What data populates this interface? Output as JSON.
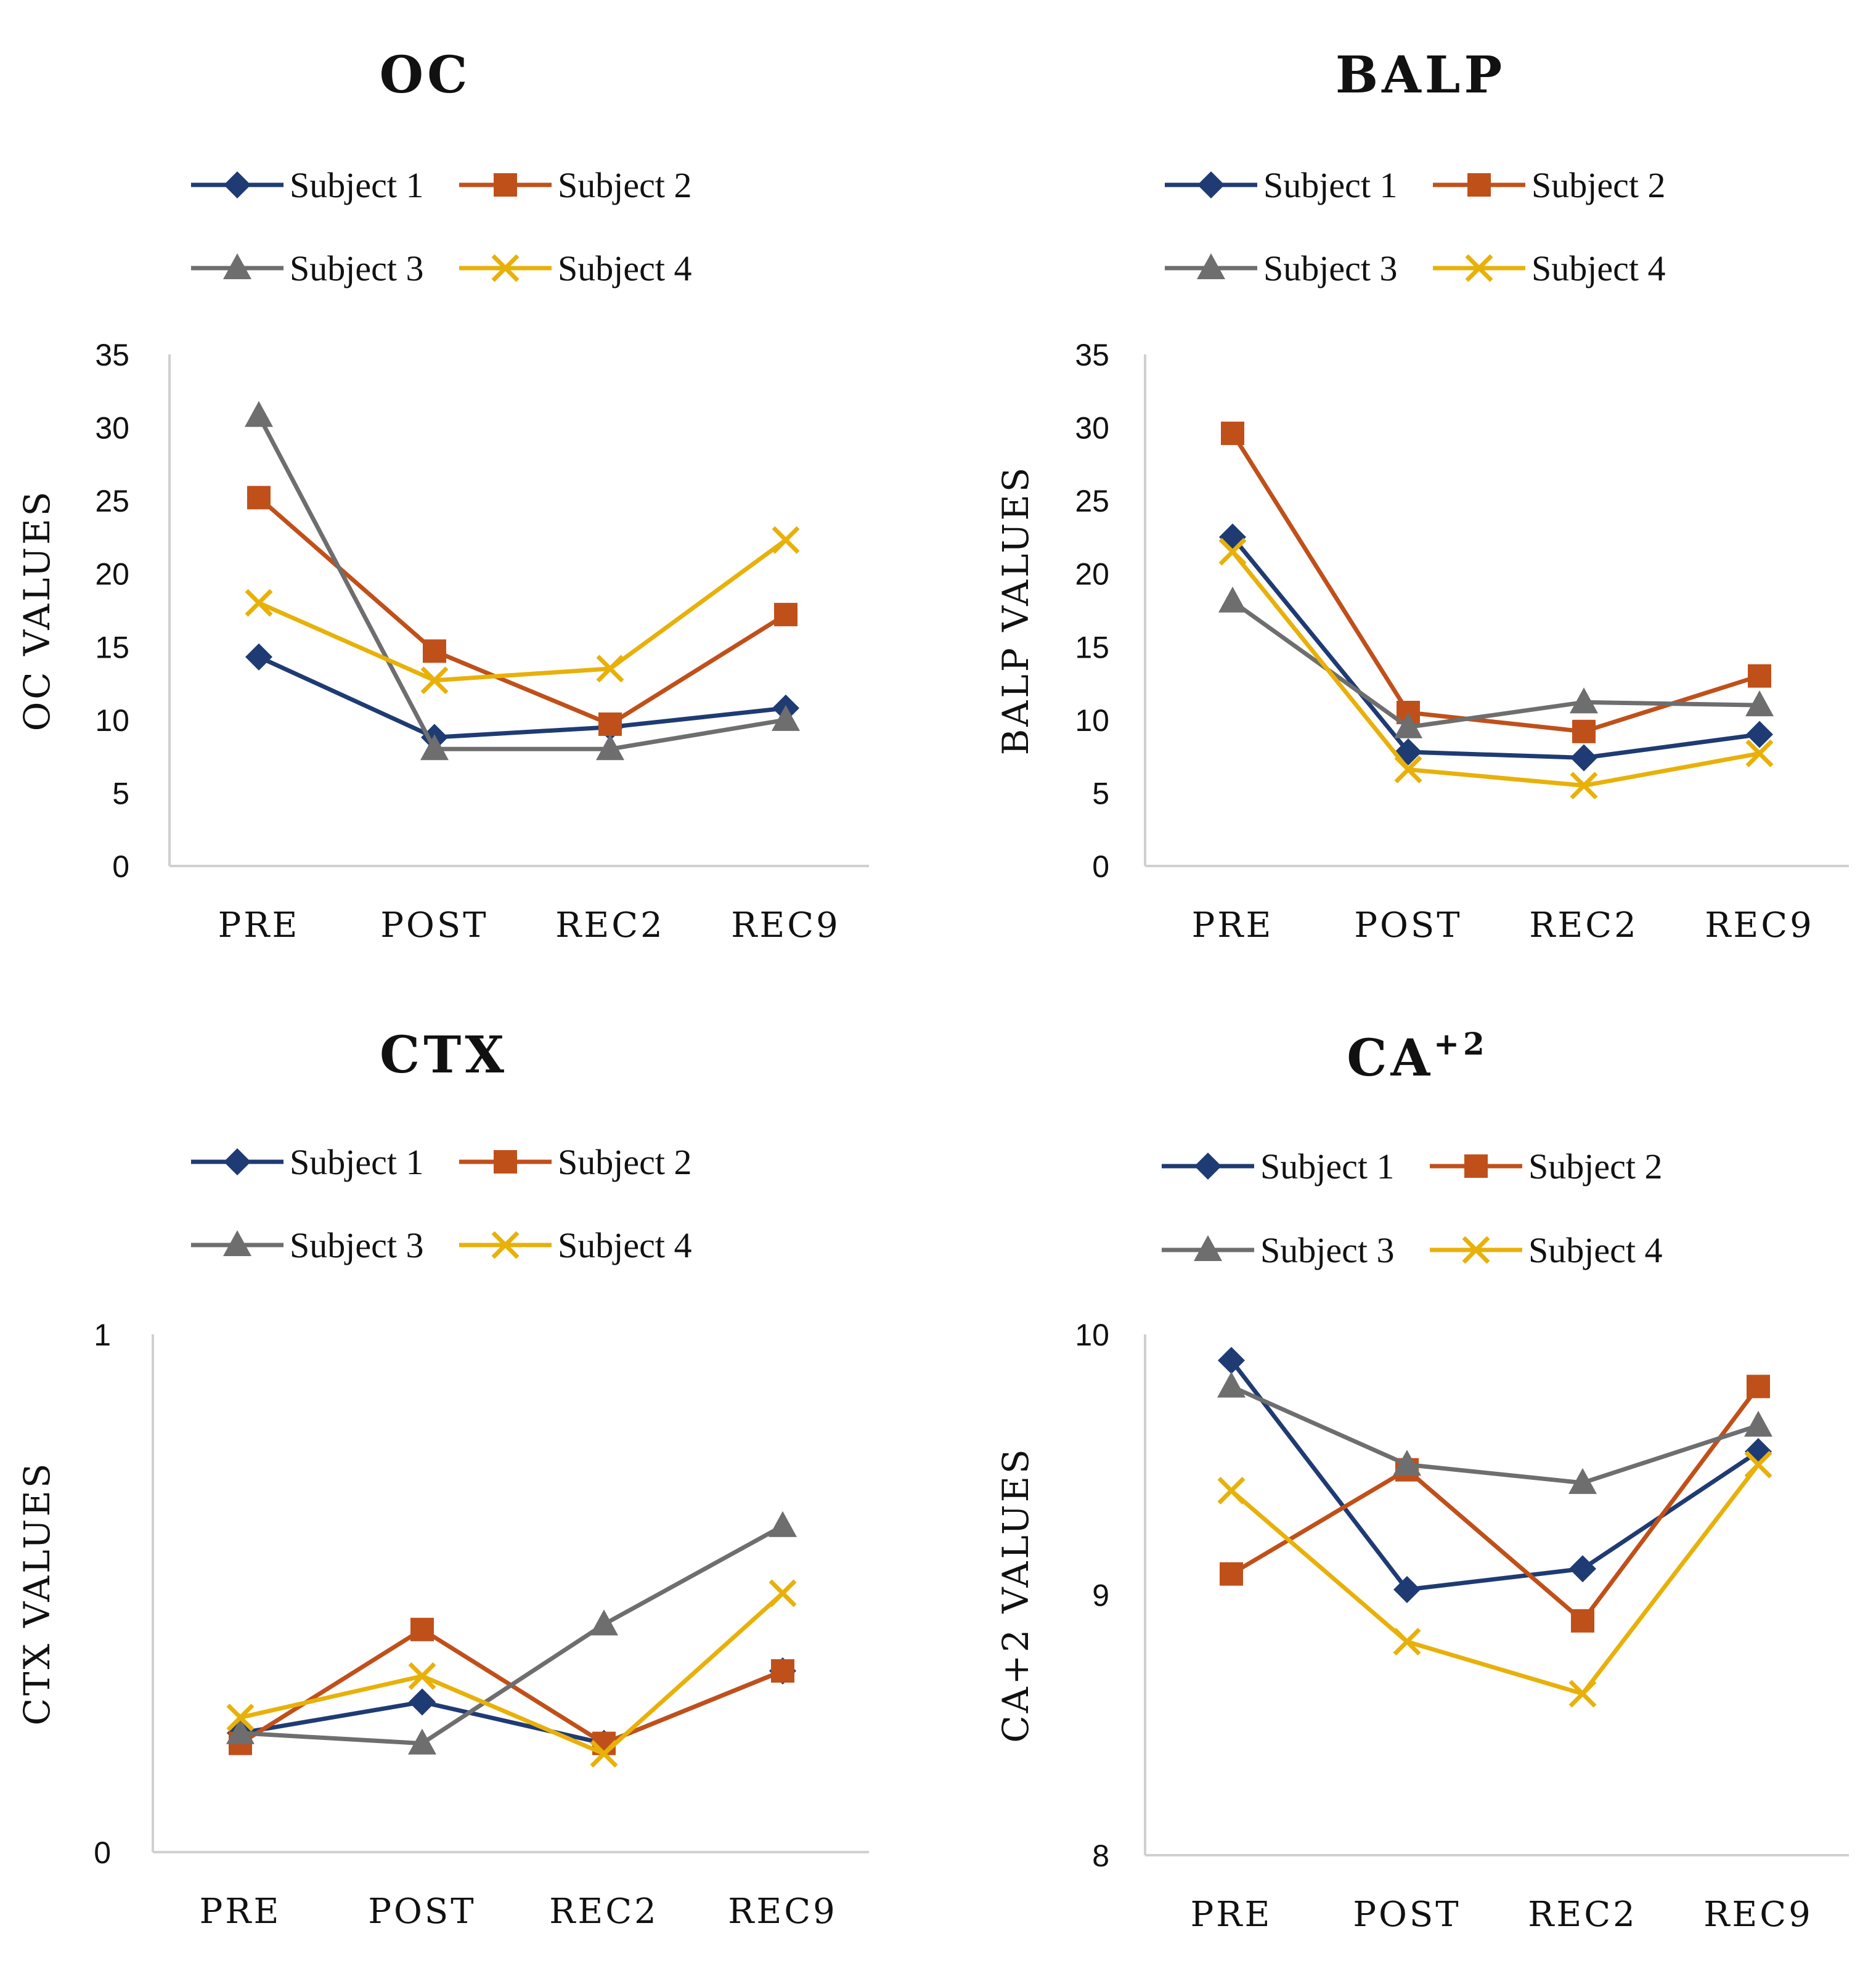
{
  "colors": {
    "Subject 1": "#1f3b73",
    "Subject 2": "#c0501a",
    "Subject 3": "#6e6e6e",
    "Subject 4": "#e8b10a"
  },
  "markers": {
    "Subject 1": "diamond",
    "Subject 2": "square",
    "Subject 3": "triangle",
    "Subject 4": "x"
  },
  "chart_data": [
    {
      "id": "oc",
      "type": "line",
      "title": "OC",
      "title_sup": "",
      "ylabel": "OC VALUES",
      "categories": [
        "PRE",
        "POST",
        "REC2",
        "REC9"
      ],
      "ylim": [
        0,
        35
      ],
      "yticks": [
        0,
        5,
        10,
        15,
        20,
        25,
        30,
        35
      ],
      "legend": [
        "Subject 1",
        "Subject 2",
        "Subject 3",
        "Subject 4"
      ],
      "series": [
        {
          "name": "Subject 1",
          "values": [
            14.3,
            8.8,
            9.5,
            10.8
          ]
        },
        {
          "name": "Subject 2",
          "values": [
            25.2,
            14.7,
            9.7,
            17.2
          ]
        },
        {
          "name": "Subject 3",
          "values": [
            30.8,
            8.0,
            8.0,
            10.0
          ]
        },
        {
          "name": "Subject 4",
          "values": [
            18.0,
            12.7,
            13.5,
            22.3
          ]
        }
      ]
    },
    {
      "id": "balp",
      "type": "line",
      "title": "BALP",
      "title_sup": "",
      "ylabel": "BALP  VALUES",
      "categories": [
        "PRE",
        "POST",
        "REC2",
        "REC9"
      ],
      "ylim": [
        0,
        35
      ],
      "yticks": [
        0,
        5,
        10,
        15,
        20,
        25,
        30,
        35
      ],
      "legend": [
        "Subject 1",
        "Subject 2",
        "Subject 3",
        "Subject 4"
      ],
      "series": [
        {
          "name": "Subject 1",
          "values": [
            22.5,
            7.8,
            7.4,
            9.0
          ]
        },
        {
          "name": "Subject 2",
          "values": [
            29.6,
            10.5,
            9.2,
            13.0
          ]
        },
        {
          "name": "Subject 3",
          "values": [
            18.1,
            9.5,
            11.2,
            11.0
          ]
        },
        {
          "name": "Subject 4",
          "values": [
            21.5,
            6.6,
            5.5,
            7.7
          ]
        }
      ]
    },
    {
      "id": "ctx",
      "type": "line",
      "title": "CTX",
      "title_sup": "",
      "ylabel": "CTX  VALUES",
      "categories": [
        "PRE",
        "POST",
        "REC2",
        "REC9"
      ],
      "ylim": [
        0,
        1
      ],
      "yticks": [
        0,
        1
      ],
      "legend": [
        "Subject 1",
        "Subject 2",
        "Subject 3",
        "Subject 4"
      ],
      "series": [
        {
          "name": "Subject 1",
          "values": [
            0.23,
            0.29,
            0.21,
            0.35
          ]
        },
        {
          "name": "Subject 2",
          "values": [
            0.21,
            0.43,
            0.21,
            0.35
          ]
        },
        {
          "name": "Subject 3",
          "values": [
            0.23,
            0.21,
            0.44,
            0.63
          ]
        },
        {
          "name": "Subject 4",
          "values": [
            0.26,
            0.34,
            0.19,
            0.5
          ]
        }
      ]
    },
    {
      "id": "ca",
      "type": "line",
      "title": "CA",
      "title_sup": "+2",
      "ylabel": "CA+2  VALUES",
      "categories": [
        "PRE",
        "POST",
        "REC2",
        "REC9"
      ],
      "ylim": [
        8,
        10
      ],
      "yticks": [
        8,
        9,
        10
      ],
      "legend": [
        "Subject 1",
        "Subject 2",
        "Subject 3",
        "Subject 4"
      ],
      "series": [
        {
          "name": "Subject 1",
          "values": [
            9.9,
            9.02,
            9.1,
            9.55
          ]
        },
        {
          "name": "Subject 2",
          "values": [
            9.08,
            9.48,
            8.9,
            9.8
          ]
        },
        {
          "name": "Subject 3",
          "values": [
            9.8,
            9.5,
            9.43,
            9.65
          ]
        },
        {
          "name": "Subject 4",
          "values": [
            9.4,
            8.82,
            8.62,
            9.5
          ]
        }
      ]
    }
  ]
}
